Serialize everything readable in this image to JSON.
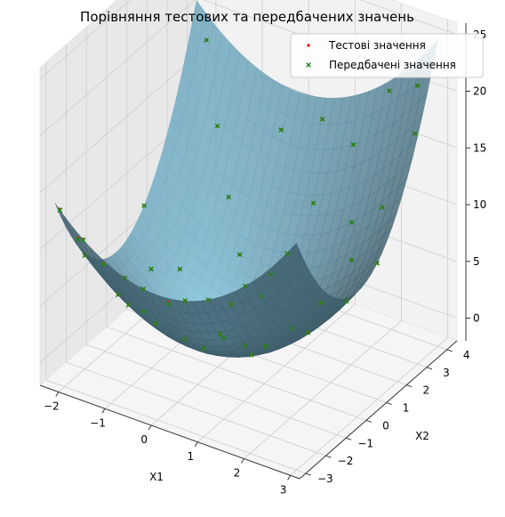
{
  "chart_data": {
    "type": "scatter",
    "subtype": "3d-surface-scatter",
    "title": "Порівняння тестових та передбачених значень",
    "xlabel": "X1",
    "ylabel": "X2",
    "zlabel": "",
    "xlim": [
      -2.4,
      3.2
    ],
    "ylim": [
      -3.3,
      4.5
    ],
    "zlim": [
      -2,
      26
    ],
    "x_ticks": [
      -2,
      -1,
      0,
      1,
      2,
      3
    ],
    "y_ticks": [
      -3,
      -2,
      -1,
      0,
      1,
      2,
      3,
      4
    ],
    "z_ticks": [
      0,
      5,
      10,
      15,
      20,
      25
    ],
    "grid": true,
    "legend_placement": "top-right",
    "surface": {
      "formula": "x1^2 + x2^2",
      "x_range": [
        -2.2,
        3.0
      ],
      "y_range": [
        -3.0,
        4.0
      ],
      "color": "#87ceeb"
    },
    "series": [
      {
        "name": "Тестові значення",
        "marker": "dot",
        "color": "#e3201b",
        "points": [
          [
            -2.1,
            -3.0,
            13.5
          ],
          [
            -1.8,
            -2.8,
            11.1
          ],
          [
            -1.6,
            -3.0,
            11.6
          ],
          [
            -1.2,
            -2.9,
            9.9
          ],
          [
            -0.7,
            -3.0,
            9.5
          ],
          [
            -0.3,
            -3.0,
            9.1
          ],
          [
            0.2,
            -2.9,
            8.5
          ],
          [
            0.6,
            -3.0,
            9.4
          ],
          [
            1.1,
            -3.0,
            10.2
          ],
          [
            1.5,
            -2.8,
            10.1
          ],
          [
            1.9,
            -3.0,
            12.6
          ],
          [
            2.4,
            -2.9,
            14.2
          ],
          [
            2.8,
            -3.0,
            16.8
          ],
          [
            -2.0,
            -2.0,
            8.0
          ],
          [
            -1.5,
            -1.5,
            4.5
          ],
          [
            -1.0,
            -0.8,
            1.6
          ],
          [
            -0.5,
            -0.5,
            0.5
          ],
          [
            0.0,
            0.3,
            0.1
          ],
          [
            0.5,
            0.2,
            0.3
          ],
          [
            0.9,
            -0.4,
            1.0
          ],
          [
            1.3,
            0.7,
            2.2
          ],
          [
            1.7,
            1.2,
            4.3
          ],
          [
            2.1,
            1.8,
            7.7
          ],
          [
            2.5,
            2.4,
            12.0
          ],
          [
            2.9,
            3.1,
            18.0
          ],
          [
            2.7,
            3.7,
            21.0
          ],
          [
            -1.9,
            3.8,
            18.1
          ],
          [
            -1.4,
            3.2,
            12.2
          ],
          [
            -0.9,
            2.6,
            7.6
          ],
          [
            -0.4,
            2.0,
            4.2
          ],
          [
            0.3,
            1.5,
            2.3
          ],
          [
            0.8,
            2.9,
            9.1
          ],
          [
            1.4,
            3.5,
            14.2
          ],
          [
            2.0,
            3.9,
            19.2
          ],
          [
            -2.2,
            1.4,
            6.8
          ],
          [
            -1.7,
            0.6,
            3.2
          ],
          [
            -1.1,
            -1.9,
            4.8
          ],
          [
            -0.6,
            -2.3,
            5.6
          ],
          [
            0.4,
            -1.6,
            2.7
          ],
          [
            1.0,
            -2.2,
            5.8
          ],
          [
            1.6,
            -1.3,
            4.2
          ],
          [
            2.2,
            -0.6,
            5.2
          ],
          [
            2.6,
            0.4,
            7.0
          ],
          [
            3.0,
            1.0,
            10.0
          ],
          [
            -0.2,
            3.6,
            13.0
          ],
          [
            0.6,
            3.8,
            14.8
          ],
          [
            1.8,
            2.5,
            9.5
          ],
          [
            -1.3,
            1.1,
            3.0
          ]
        ]
      },
      {
        "name": "Передбачені значення",
        "marker": "x",
        "color": "#1a8a1a",
        "points": [
          [
            -2.1,
            -3.0,
            13.4
          ],
          [
            -1.8,
            -2.8,
            11.0
          ],
          [
            -1.6,
            -3.0,
            11.5
          ],
          [
            -1.2,
            -2.9,
            9.8
          ],
          [
            -0.7,
            -3.0,
            9.5
          ],
          [
            -0.3,
            -3.0,
            9.1
          ],
          [
            0.2,
            -2.9,
            8.4
          ],
          [
            0.6,
            -3.0,
            9.4
          ],
          [
            1.1,
            -3.0,
            10.2
          ],
          [
            1.5,
            -2.8,
            10.1
          ],
          [
            1.9,
            -3.0,
            12.6
          ],
          [
            2.4,
            -2.9,
            14.2
          ],
          [
            2.8,
            -3.0,
            16.8
          ],
          [
            -2.0,
            -2.0,
            8.0
          ],
          [
            -1.5,
            -1.5,
            4.5
          ],
          [
            -1.0,
            -0.8,
            1.6
          ],
          [
            -0.5,
            -0.5,
            0.5
          ],
          [
            0.0,
            0.3,
            0.1
          ],
          [
            0.5,
            0.2,
            0.3
          ],
          [
            0.9,
            -0.4,
            1.0
          ],
          [
            1.3,
            0.7,
            2.2
          ],
          [
            1.7,
            1.2,
            4.3
          ],
          [
            2.1,
            1.8,
            7.7
          ],
          [
            2.5,
            2.4,
            12.0
          ],
          [
            2.9,
            3.1,
            18.0
          ],
          [
            2.7,
            3.7,
            21.0
          ],
          [
            -1.9,
            3.8,
            18.1
          ],
          [
            -1.4,
            3.2,
            12.2
          ],
          [
            -0.9,
            2.6,
            7.6
          ],
          [
            -0.4,
            2.0,
            4.2
          ],
          [
            0.3,
            1.5,
            2.3
          ],
          [
            0.8,
            2.9,
            9.1
          ],
          [
            1.4,
            3.5,
            14.2
          ],
          [
            2.0,
            3.9,
            19.2
          ],
          [
            -2.2,
            1.4,
            6.8
          ],
          [
            -1.7,
            0.6,
            3.2
          ],
          [
            -1.1,
            -1.9,
            4.8
          ],
          [
            -0.6,
            -2.3,
            5.6
          ],
          [
            0.4,
            -1.6,
            2.7
          ],
          [
            1.0,
            -2.2,
            5.8
          ],
          [
            1.6,
            -1.3,
            4.2
          ],
          [
            2.2,
            -0.6,
            5.2
          ],
          [
            2.6,
            0.4,
            7.0
          ],
          [
            3.0,
            1.0,
            10.0
          ],
          [
            -0.2,
            3.6,
            13.0
          ],
          [
            0.6,
            3.8,
            14.8
          ],
          [
            1.8,
            2.5,
            9.5
          ],
          [
            -1.3,
            1.1,
            3.0
          ]
        ]
      }
    ]
  }
}
